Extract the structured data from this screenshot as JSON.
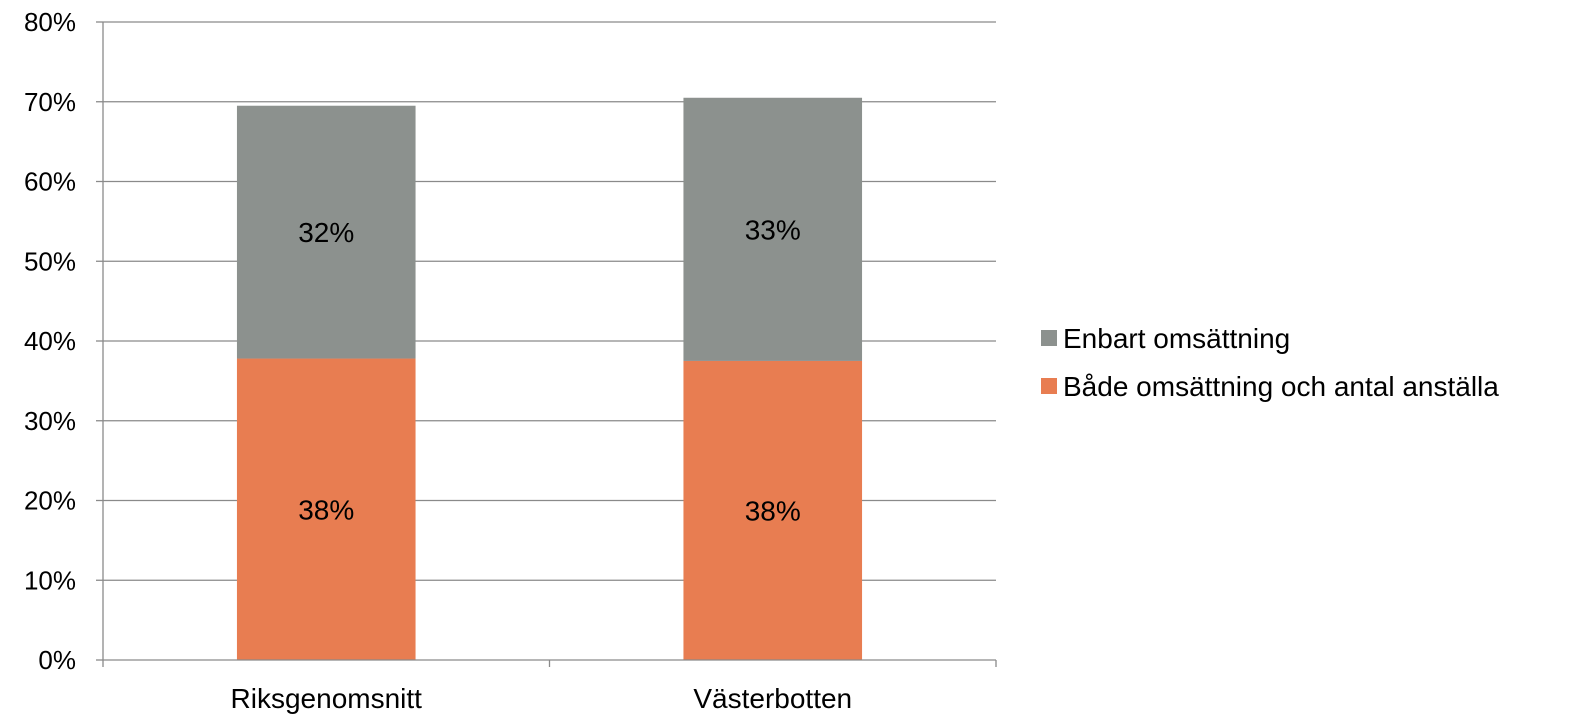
{
  "chart_data": {
    "type": "bar",
    "stacked": true,
    "categories": [
      "Riksgenomsnitt",
      "Västerbotten"
    ],
    "series": [
      {
        "name": "Både omsättning och antal anställa",
        "values": [
          0.378,
          0.375
        ],
        "labels": [
          "38%",
          "38%"
        ],
        "color": "#E87D51"
      },
      {
        "name": "Enbart omsättning",
        "values": [
          0.317,
          0.33
        ],
        "labels": [
          "32%",
          "33%"
        ],
        "color": "#8C918E"
      }
    ],
    "ylim": [
      0,
      0.8
    ],
    "yticks": [
      0,
      0.1,
      0.2,
      0.3,
      0.4,
      0.5,
      0.6,
      0.7,
      0.8
    ],
    "ytick_labels": [
      "0%",
      "10%",
      "20%",
      "30%",
      "40%",
      "50%",
      "60%",
      "70%",
      "80%"
    ],
    "grid": true,
    "legend_position": "right",
    "legend_order": [
      1,
      0
    ]
  }
}
